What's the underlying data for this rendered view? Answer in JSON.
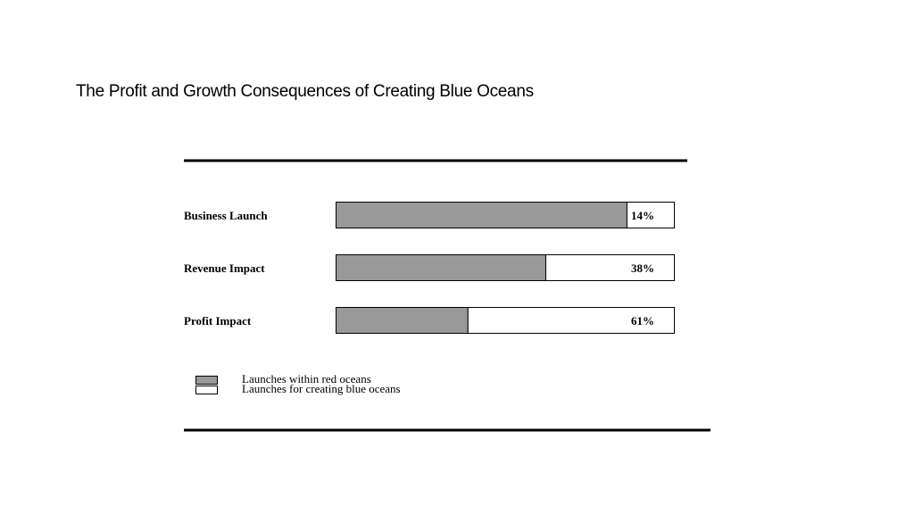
{
  "slide": {
    "title": "The Profit and Growth Consequences of Creating Blue Oceans"
  },
  "colors": {
    "red_ocean_fill": "#999999",
    "blue_ocean_fill": "#ffffff",
    "outline": "#000000"
  },
  "chart_data": {
    "type": "bar",
    "orientation": "horizontal",
    "stacked": true,
    "percent_stacked": true,
    "categories": [
      "Business Launch",
      "Revenue Impact",
      "Profit Impact"
    ],
    "series": [
      {
        "name": "Launches within red oceans",
        "color": "#999999",
        "values": [
          86,
          62,
          39
        ]
      },
      {
        "name": "Launches for creating blue oceans",
        "color": "#ffffff",
        "values": [
          14,
          38,
          61
        ]
      }
    ],
    "data_labels": [
      "14%",
      "38%",
      "61%"
    ],
    "xlim": [
      0,
      100
    ],
    "grid": false,
    "legend_position": "bottom-left"
  }
}
